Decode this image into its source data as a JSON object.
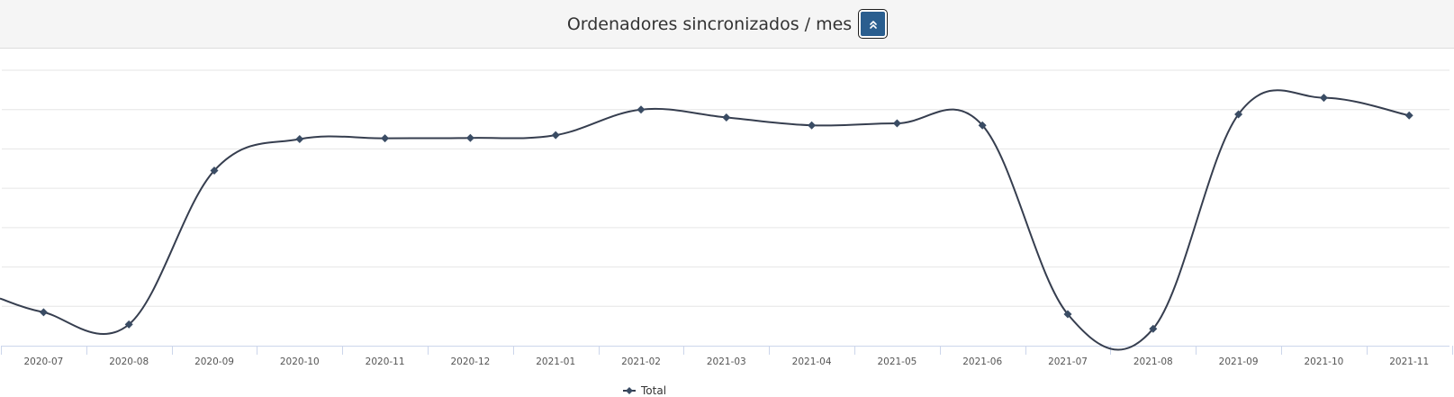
{
  "header": {
    "title": "Ordenadores sincronizados / mes",
    "collapse_icon": "double-chevron-up-icon"
  },
  "chart_data": {
    "type": "line",
    "categories": [
      "2020-07",
      "2020-08",
      "2020-09",
      "2020-10",
      "2020-11",
      "2020-12",
      "2021-01",
      "2021-02",
      "2021-03",
      "2021-04",
      "2021-05",
      "2021-06",
      "2021-07",
      "2021-08",
      "2021-09",
      "2021-10",
      "2021-11"
    ],
    "series": [
      {
        "name": "Total",
        "values": [
          0.85,
          0.54,
          4.45,
          5.25,
          5.27,
          5.28,
          5.35,
          6.0,
          5.8,
          5.6,
          5.65,
          5.6,
          0.8,
          0.43,
          5.88,
          6.3,
          5.85
        ]
      }
    ],
    "left_edge_value": 1.2,
    "ylim": [
      0,
      7
    ],
    "y_tick_step": 1,
    "y_tick_labels_visible": false,
    "grid": true,
    "legend": "bottom-center",
    "colors": {
      "line": "#363e4f",
      "marker": "#3a4c64",
      "grid": "#e6e6e6",
      "axis": "#ccd6eb"
    }
  }
}
